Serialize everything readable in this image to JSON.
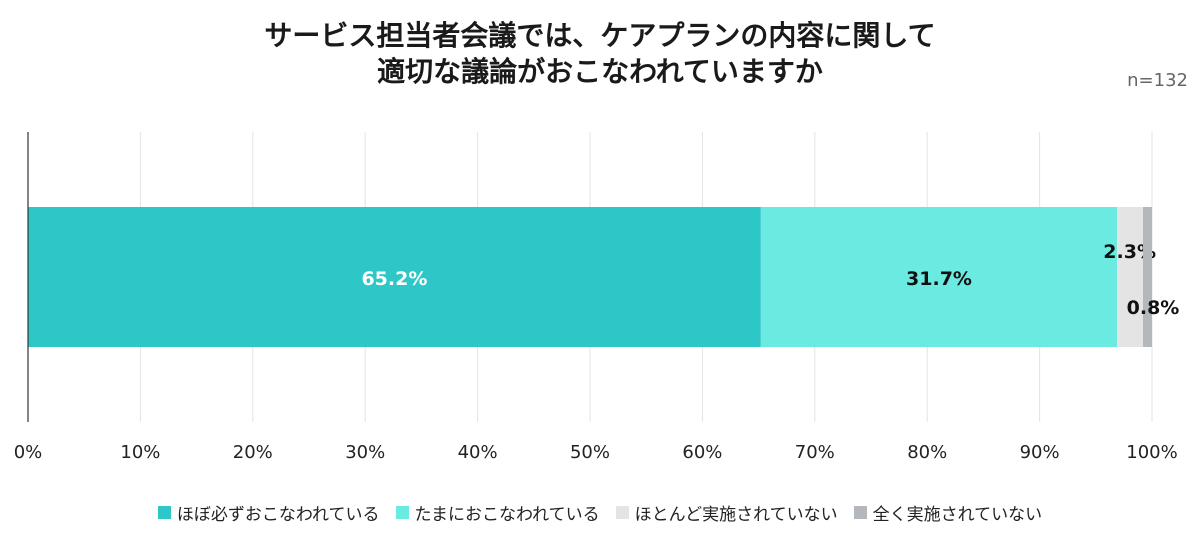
{
  "chart_data": {
    "type": "bar",
    "orientation": "horizontal",
    "stacked": true,
    "title_lines": [
      "サービス担当者会議では、ケアプランの内容に関して",
      "適切な議論がおこなわれていますか"
    ],
    "note": "n=132",
    "categories": [
      ""
    ],
    "series": [
      {
        "name": "ほぼ必ずおこなわれている",
        "values": [
          65.2
        ],
        "label": "65.2%",
        "color": "#2ec7c7",
        "label_color": "#ffffff"
      },
      {
        "name": "たまにおこなわれている",
        "values": [
          31.7
        ],
        "label": "31.7%",
        "color": "#6aeae0",
        "label_color": "#111111"
      },
      {
        "name": "ほとんど実施されていない",
        "values": [
          2.3
        ],
        "label": "2.3%",
        "color": "#e4e4e4",
        "label_color": "#111111"
      },
      {
        "name": "全く実施されていない",
        "values": [
          0.8
        ],
        "label": "0.8%",
        "color": "#b4b8bd",
        "label_color": "#111111"
      }
    ],
    "xlim": [
      0,
      100
    ],
    "xticks": [
      "0%",
      "10%",
      "20%",
      "30%",
      "40%",
      "50%",
      "60%",
      "70%",
      "80%",
      "90%",
      "100%"
    ],
    "grid": true,
    "legend_position": "bottom"
  }
}
